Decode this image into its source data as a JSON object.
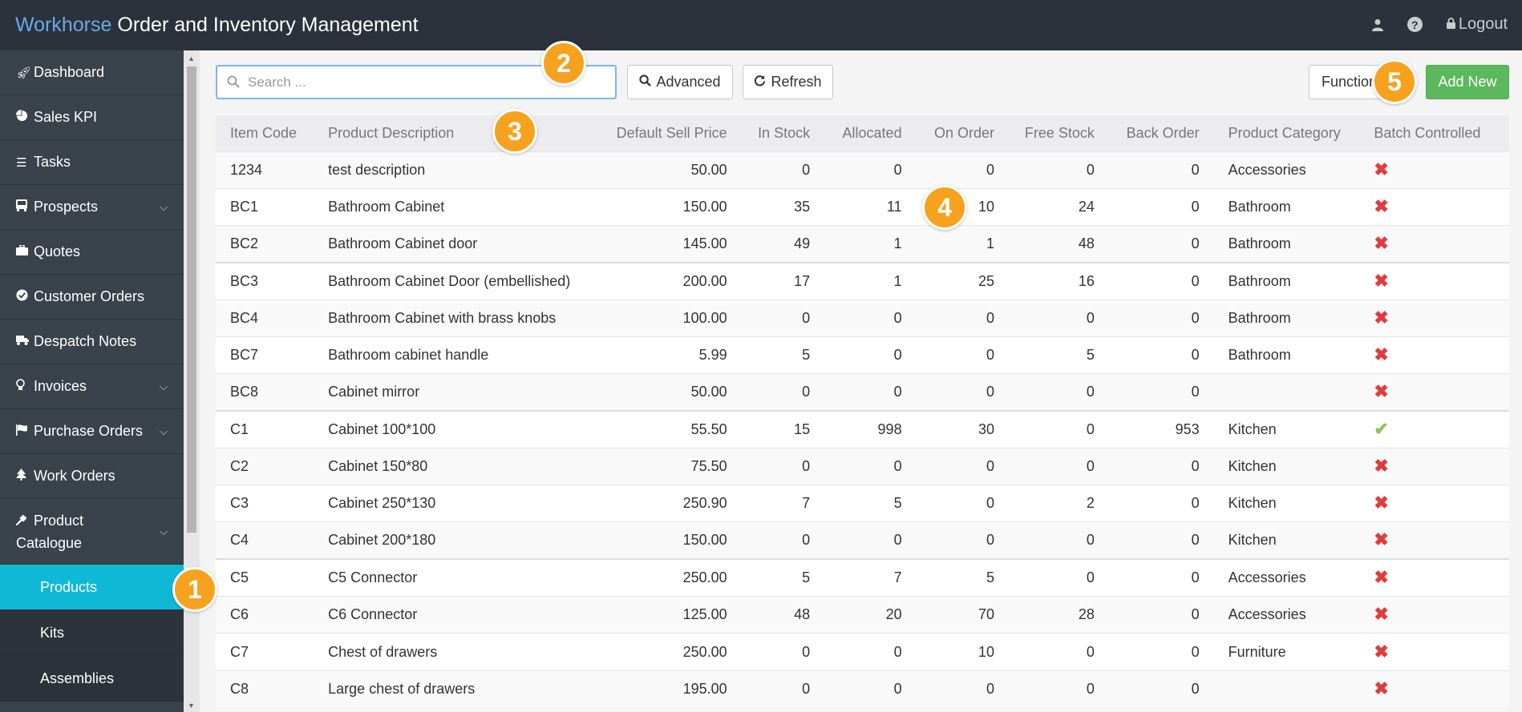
{
  "header": {
    "brand_accent": "Workhorse",
    "brand_rest": " Order and Inventory Management",
    "logout_label": "Logout"
  },
  "sidebar": {
    "items": [
      {
        "label": "Dashboard",
        "icon": "rocket-icon"
      },
      {
        "label": "Sales KPI",
        "icon": "pie-chart-icon"
      },
      {
        "label": "Tasks",
        "icon": "list-icon"
      },
      {
        "label": "Prospects",
        "icon": "bus-icon"
      },
      {
        "label": "Quotes",
        "icon": "briefcase-icon"
      },
      {
        "label": "Customer Orders",
        "icon": "check-circle-icon"
      },
      {
        "label": "Despatch Notes",
        "icon": "truck-icon"
      },
      {
        "label": "Invoices",
        "icon": "lightbulb-icon"
      },
      {
        "label": "Purchase Orders",
        "icon": "flag-icon"
      },
      {
        "label": "Work Orders",
        "icon": "tree-icon"
      },
      {
        "label": "Product Catalogue",
        "icon": "plug-icon"
      }
    ],
    "subitems": [
      {
        "label": "Products",
        "active": true
      },
      {
        "label": "Kits",
        "active": false
      },
      {
        "label": "Assemblies",
        "active": false
      }
    ]
  },
  "toolbar": {
    "search_placeholder": "Search ...",
    "advanced_label": "Advanced",
    "refresh_label": "Refresh",
    "functions_label": "Functions",
    "add_new_label": "Add New"
  },
  "table": {
    "columns": [
      "Item Code",
      "Product Description",
      "Default Sell Price",
      "In Stock",
      "Allocated",
      "On Order",
      "Free Stock",
      "Back Order",
      "Product Category",
      "Batch Controlled"
    ],
    "rows": [
      {
        "code": "1234",
        "desc": "test description",
        "price": "50.00",
        "in_stock": "0",
        "allocated": "0",
        "on_order": "0",
        "free_stock": "0",
        "back_order": "0",
        "category": "Accessories",
        "batch": false
      },
      {
        "code": "BC1",
        "desc": "Bathroom Cabinet",
        "price": "150.00",
        "in_stock": "35",
        "allocated": "11",
        "on_order": "10",
        "free_stock": "24",
        "back_order": "0",
        "category": "Bathroom",
        "batch": false
      },
      {
        "code": "BC2",
        "desc": "Bathroom Cabinet door",
        "price": "145.00",
        "in_stock": "49",
        "allocated": "1",
        "on_order": "1",
        "free_stock": "48",
        "back_order": "0",
        "category": "Bathroom",
        "batch": false
      },
      {
        "code": "BC3",
        "desc": "Bathroom Cabinet Door (embellished)",
        "price": "200.00",
        "in_stock": "17",
        "allocated": "1",
        "on_order": "25",
        "free_stock": "16",
        "back_order": "0",
        "category": "Bathroom",
        "batch": false
      },
      {
        "code": "BC4",
        "desc": "Bathroom Cabinet with brass knobs",
        "price": "100.00",
        "in_stock": "0",
        "allocated": "0",
        "on_order": "0",
        "free_stock": "0",
        "back_order": "0",
        "category": "Bathroom",
        "batch": false
      },
      {
        "code": "BC7",
        "desc": "Bathroom cabinet handle",
        "price": "5.99",
        "in_stock": "5",
        "allocated": "0",
        "on_order": "0",
        "free_stock": "5",
        "back_order": "0",
        "category": "Bathroom",
        "batch": false
      },
      {
        "code": "BC8",
        "desc": "Cabinet mirror",
        "price": "50.00",
        "in_stock": "0",
        "allocated": "0",
        "on_order": "0",
        "free_stock": "0",
        "back_order": "0",
        "category": "",
        "batch": false
      },
      {
        "code": "C1",
        "desc": "Cabinet 100*100",
        "price": "55.50",
        "in_stock": "15",
        "allocated": "998",
        "on_order": "30",
        "free_stock": "0",
        "back_order": "953",
        "category": "Kitchen",
        "batch": true
      },
      {
        "code": "C2",
        "desc": "Cabinet 150*80",
        "price": "75.50",
        "in_stock": "0",
        "allocated": "0",
        "on_order": "0",
        "free_stock": "0",
        "back_order": "0",
        "category": "Kitchen",
        "batch": false
      },
      {
        "code": "C3",
        "desc": "Cabinet 250*130",
        "price": "250.90",
        "in_stock": "7",
        "allocated": "5",
        "on_order": "0",
        "free_stock": "2",
        "back_order": "0",
        "category": "Kitchen",
        "batch": false
      },
      {
        "code": "C4",
        "desc": "Cabinet 200*180",
        "price": "150.00",
        "in_stock": "0",
        "allocated": "0",
        "on_order": "0",
        "free_stock": "0",
        "back_order": "0",
        "category": "Kitchen",
        "batch": false
      },
      {
        "code": "C5",
        "desc": "C5 Connector",
        "price": "250.00",
        "in_stock": "5",
        "allocated": "7",
        "on_order": "5",
        "free_stock": "0",
        "back_order": "0",
        "category": "Accessories",
        "batch": false
      },
      {
        "code": "C6",
        "desc": "C6 Connector",
        "price": "125.00",
        "in_stock": "48",
        "allocated": "20",
        "on_order": "70",
        "free_stock": "28",
        "back_order": "0",
        "category": "Accessories",
        "batch": false
      },
      {
        "code": "C7",
        "desc": "Chest of drawers",
        "price": "250.00",
        "in_stock": "0",
        "allocated": "0",
        "on_order": "10",
        "free_stock": "0",
        "back_order": "0",
        "category": "Furniture",
        "batch": false
      },
      {
        "code": "C8",
        "desc": "Large chest of drawers",
        "price": "195.00",
        "in_stock": "0",
        "allocated": "0",
        "on_order": "0",
        "free_stock": "0",
        "back_order": "0",
        "category": "",
        "batch": false
      }
    ]
  },
  "callouts": [
    "1",
    "2",
    "3",
    "4",
    "5"
  ],
  "colors": {
    "topbar": "#2b323b",
    "sidebar": "#3a424b",
    "active": "#0fb9d6",
    "callout": "#f6a21e",
    "add_button": "#5cb85c",
    "cross": "#e23b3b",
    "check": "#8cc152"
  }
}
